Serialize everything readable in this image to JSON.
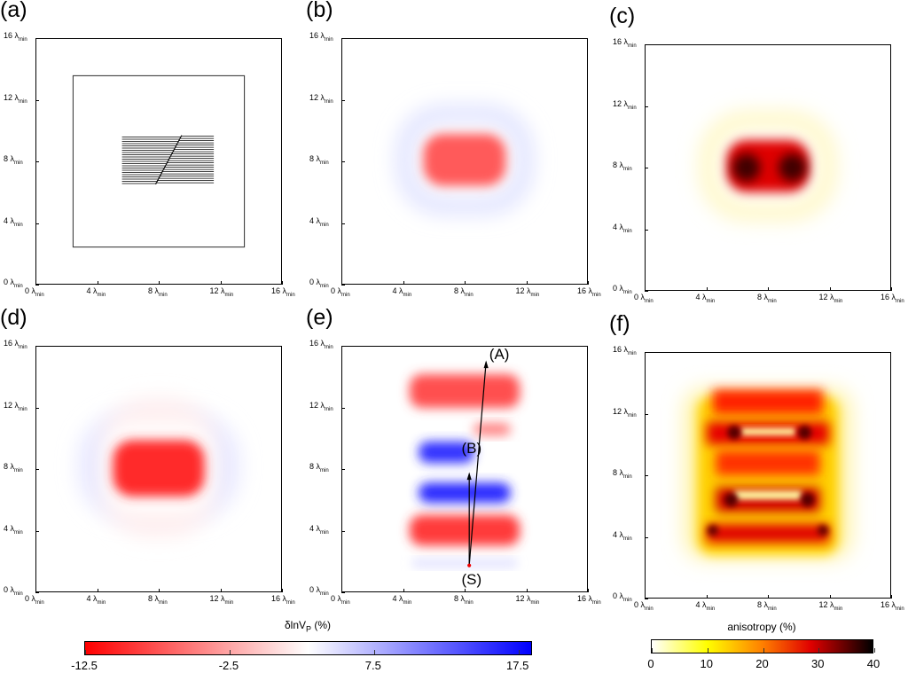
{
  "chart_data": {
    "type": "heatmap",
    "unit_symbol": "λ",
    "unit_sub": "min",
    "axis_ticks": [
      0,
      4,
      8,
      12,
      16
    ],
    "xlim": [
      0,
      16
    ],
    "ylim": [
      0,
      16
    ],
    "panels": [
      {
        "label": "(a)",
        "kind": "model geometry"
      },
      {
        "label": "(b)",
        "kind": "dlnVp"
      },
      {
        "label": "(c)",
        "kind": "anisotropy"
      },
      {
        "label": "(d)",
        "kind": "dlnVp"
      },
      {
        "label": "(e)",
        "kind": "dlnVp",
        "annotations": [
          "(A)",
          "(B)",
          "(S)"
        ]
      },
      {
        "label": "(f)",
        "kind": "anisotropy"
      }
    ],
    "colorbars": [
      {
        "title_main": "δlnV",
        "title_sub": "P",
        "title_unit": " (%)",
        "range": [
          -12.5,
          18.5
        ],
        "ticks": [
          "-12.5",
          "-2.5",
          "7.5",
          "17.5"
        ],
        "tick_values": [
          -12.5,
          -2.5,
          7.5,
          17.5
        ],
        "colors": [
          "#ff0000",
          "#ffffff",
          "#0000ff"
        ]
      },
      {
        "title": "anisotropy (%)",
        "range": [
          0,
          40
        ],
        "ticks": [
          "0",
          "10",
          "20",
          "30",
          "40"
        ],
        "tick_values": [
          0,
          10,
          20,
          30,
          40
        ],
        "colors": [
          "#ffffff",
          "#ffff00",
          "#ff8000",
          "#e00000",
          "#000000"
        ]
      }
    ]
  }
}
